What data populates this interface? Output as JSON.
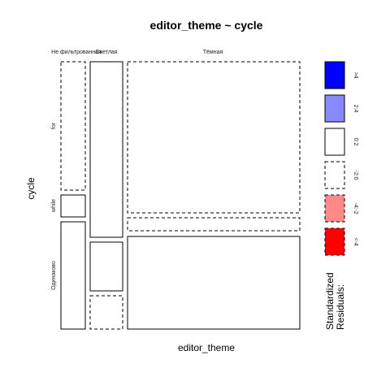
{
  "chart_data": {
    "type": "mosaic",
    "title": "editor_theme ~ cycle",
    "xlabel": "editor_theme",
    "ylabel": "cycle",
    "columns": [
      "Не фильтрованная",
      "Светлая",
      "Тёмная"
    ],
    "rows": [
      "for",
      "while",
      "Одинаково"
    ],
    "cells": [
      {
        "column": "Не фильтрованная",
        "row": "for",
        "residual_band": "-2:0"
      },
      {
        "column": "Не фильтрованная",
        "row": "while",
        "residual_band": "0:2"
      },
      {
        "column": "Не фильтрованная",
        "row": "Одинаково",
        "residual_band": "0:2"
      },
      {
        "column": "Светлая",
        "row": "for",
        "residual_band": "0:2"
      },
      {
        "column": "Светлая",
        "row": "while",
        "residual_band": "0:2"
      },
      {
        "column": "Светлая",
        "row": "Одинаково",
        "residual_band": "-2:0"
      },
      {
        "column": "Тёмная",
        "row": "for",
        "residual_band": "-2:0"
      },
      {
        "column": "Тёмная",
        "row": "while",
        "residual_band": "-2:0"
      },
      {
        "column": "Тёмная",
        "row": "Одинаково",
        "residual_band": "0:2"
      }
    ],
    "legend": {
      "title_line1": "Standardized",
      "title_line2": "Residuals:",
      "placement": "right",
      "entries": [
        {
          "label": ">4",
          "color": "#0000ff",
          "dashed": false
        },
        {
          "label": "2:4",
          "color": "#8888ff",
          "dashed": false
        },
        {
          "label": "0:2",
          "color": "#ffffff",
          "dashed": false
        },
        {
          "label": "-2:0",
          "color": "#ffffff",
          "dashed": true
        },
        {
          "label": "-4:-2",
          "color": "#ff8888",
          "dashed": true
        },
        {
          "label": "<-4",
          "color": "#ff0000",
          "dashed": true
        }
      ]
    }
  }
}
